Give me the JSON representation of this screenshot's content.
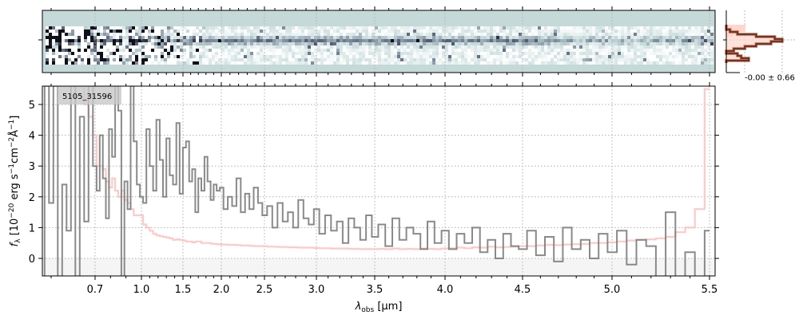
{
  "chart_data": {
    "type": "line",
    "object_label": "5105_31596",
    "xlabel": {
      "sym": "λ",
      "sub": "obs",
      "unit": " [μm]"
    },
    "ylabel": {
      "f": "f",
      "sub": "λ",
      "a": " [10",
      "e1": "−20",
      "b": " erg s",
      "e2": "−1",
      "c": "cm",
      "e3": "−2",
      "d": "Å",
      "e4": "−1",
      "e": "]"
    },
    "xticks": [
      0.7,
      1.0,
      1.5,
      2.0,
      2.5,
      3.0,
      3.5,
      4.0,
      4.5,
      5.0,
      5.5
    ],
    "xtick_labels": [
      "0.7",
      "1.0",
      "1.5",
      "2.0",
      "2.5",
      "3.0",
      "3.5",
      "4.0",
      "4.5",
      "5.0",
      "5.5"
    ],
    "yticks": [
      0,
      1,
      2,
      3,
      4,
      5
    ],
    "ytick_labels": [
      "0",
      "1",
      "2",
      "3",
      "4",
      "5"
    ],
    "xlim": [
      0.58,
      5.52
    ],
    "ylim": [
      -0.57,
      5.6
    ],
    "grid": true,
    "colors": {
      "flux": "#808080",
      "error": "#ffbfbf",
      "background_2d": "#c5d9d9",
      "hist_line": "#4a3a30",
      "hist_edge": "#e06040",
      "hist_fill": "#ffd5cc"
    },
    "wavelength": [
      0.58,
      0.59,
      0.6,
      0.61,
      0.62,
      0.63,
      0.64,
      0.65,
      0.66,
      0.67,
      0.68,
      0.69,
      0.7,
      0.72,
      0.74,
      0.76,
      0.78,
      0.8,
      0.82,
      0.84,
      0.86,
      0.88,
      0.9,
      0.92,
      0.94,
      0.96,
      0.98,
      1.0,
      1.04,
      1.08,
      1.12,
      1.16,
      1.2,
      1.24,
      1.28,
      1.32,
      1.36,
      1.4,
      1.44,
      1.48,
      1.52,
      1.56,
      1.6,
      1.64,
      1.68,
      1.72,
      1.76,
      1.8,
      1.84,
      1.88,
      1.92,
      1.96,
      2.0,
      2.05,
      2.1,
      2.15,
      2.2,
      2.25,
      2.3,
      2.35,
      2.4,
      2.45,
      2.5,
      2.55,
      2.6,
      2.65,
      2.7,
      2.75,
      2.8,
      2.85,
      2.9,
      2.95,
      3.0,
      3.05,
      3.1,
      3.15,
      3.2,
      3.25,
      3.3,
      3.35,
      3.4,
      3.45,
      3.5,
      3.55,
      3.6,
      3.65,
      3.7,
      3.75,
      3.8,
      3.85,
      3.9,
      3.95,
      4.0,
      4.05,
      4.1,
      4.15,
      4.2,
      4.25,
      4.3,
      4.35,
      4.4,
      4.45,
      4.5,
      4.55,
      4.6,
      4.65,
      4.7,
      4.75,
      4.8,
      4.85,
      4.9,
      4.95,
      5.0,
      5.05,
      5.1,
      5.15,
      5.2,
      5.25,
      5.3,
      5.35,
      5.4,
      5.45,
      5.5
    ],
    "flux": [
      -0.6,
      5.6,
      1.8,
      5.6,
      -0.6,
      2.4,
      0.9,
      5.6,
      -0.6,
      4.6,
      1.2,
      5.6,
      3.0,
      2.2,
      4.0,
      2.6,
      1.3,
      4.2,
      3.3,
      5.6,
      4.8,
      -0.6,
      2.5,
      1.6,
      5.6,
      3.8,
      2.4,
      2.0,
      1.8,
      4.2,
      3.0,
      2.2,
      4.5,
      3.2,
      2.0,
      3.9,
      2.7,
      2.4,
      4.4,
      2.1,
      3.6,
      3.8,
      2.5,
      2.9,
      1.5,
      2.6,
      2.2,
      3.3,
      2.5,
      1.9,
      2.4,
      2.2,
      2.3,
      1.6,
      2.0,
      1.7,
      2.6,
      1.5,
      2.1,
      1.6,
      2.3,
      1.8,
      1.4,
      1.7,
      1.0,
      1.8,
      1.2,
      1.5,
      1.0,
      1.9,
      1.3,
      1.1,
      1.6,
      0.8,
      1.4,
      0.9,
      1.2,
      0.5,
      1.3,
      1.0,
      0.6,
      1.4,
      0.7,
      1.1,
      0.4,
      1.3,
      0.6,
      1.0,
      0.8,
      0.3,
      1.2,
      0.5,
      0.9,
      0.3,
      0.8,
      0.5,
      1.0,
      0.2,
      0.6,
      0.0,
      0.8,
      0.4,
      0.3,
      0.9,
      0.1,
      0.7,
      -0.1,
      1.0,
      0.3,
      0.6,
      0.0,
      0.8,
      0.2,
      0.9,
      -0.2,
      0.6,
      0.4,
      -0.6,
      1.5,
      -0.6,
      0.2,
      -0.6,
      0.9
    ],
    "error": [
      6,
      6,
      6,
      6,
      6,
      6,
      6,
      6,
      6,
      5.6,
      5.0,
      4.6,
      4.0,
      3.0,
      3.0,
      2.9,
      2.5,
      2.3,
      2.6,
      2.2,
      2.0,
      2.2,
      1.9,
      1.8,
      1.6,
      1.4,
      1.4,
      1.4,
      1.1,
      1.0,
      0.9,
      0.8,
      0.75,
      0.72,
      0.7,
      0.68,
      0.65,
      0.6,
      0.62,
      0.6,
      0.58,
      0.55,
      0.55,
      0.52,
      0.55,
      0.55,
      0.5,
      0.5,
      0.5,
      0.48,
      0.47,
      0.46,
      0.45,
      0.45,
      0.44,
      0.44,
      0.43,
      0.42,
      0.42,
      0.41,
      0.4,
      0.4,
      0.4,
      0.38,
      0.38,
      0.37,
      0.37,
      0.36,
      0.36,
      0.35,
      0.35,
      0.35,
      0.34,
      0.33,
      0.33,
      0.32,
      0.32,
      0.32,
      0.31,
      0.31,
      0.3,
      0.3,
      0.3,
      0.31,
      0.3,
      0.32,
      0.3,
      0.31,
      0.3,
      0.32,
      0.31,
      0.3,
      0.32,
      0.33,
      0.35,
      0.33,
      0.36,
      0.35,
      0.38,
      0.36,
      0.37,
      0.38,
      0.4,
      0.4,
      0.42,
      0.44,
      0.43,
      0.45,
      0.46,
      0.47,
      0.5,
      0.5,
      0.52,
      0.55,
      0.58,
      0.6,
      0.62,
      0.65,
      0.7,
      0.85,
      1.0,
      1.6,
      5.5
    ],
    "histogram": {
      "label": "-0.00 ± 0.66",
      "counts": [
        0,
        0,
        1,
        3,
        8,
        13,
        15,
        12,
        8,
        5,
        2,
        0,
        3,
        4,
        6,
        0
      ],
      "model": [
        3,
        3,
        3,
        2,
        1,
        0,
        0,
        0,
        0,
        0,
        0,
        0,
        0,
        0,
        0,
        0
      ]
    }
  }
}
